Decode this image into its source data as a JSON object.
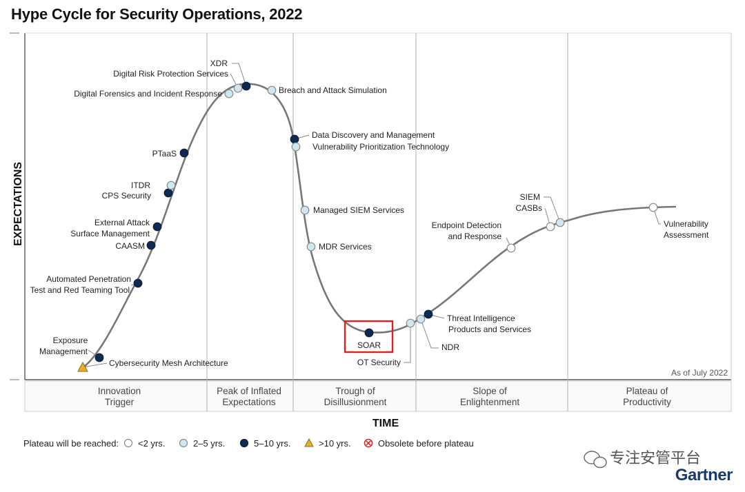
{
  "title": "Hype Cycle for Security Operations, 2022",
  "y_axis_label": "EXPECTATIONS",
  "x_axis_label": "TIME",
  "as_of": "As of July 2022",
  "phases": [
    {
      "lines": [
        "Innovation",
        "Trigger"
      ]
    },
    {
      "lines": [
        "Peak of Inflated",
        "Expectations"
      ]
    },
    {
      "lines": [
        "Trough of",
        "Disillusionment"
      ]
    },
    {
      "lines": [
        "Slope of",
        "Enlightenment"
      ]
    },
    {
      "lines": [
        "Plateau of",
        "Productivity"
      ]
    }
  ],
  "legend": {
    "prefix": "Plateau will be reached:",
    "items": [
      {
        "key": "lt2",
        "label": "<2 yrs."
      },
      {
        "key": "2to5",
        "label": "2–5 yrs."
      },
      {
        "key": "5to10",
        "label": "5–10 yrs."
      },
      {
        "key": "gt10",
        "label": ">10 yrs."
      },
      {
        "key": "obsolete",
        "label": "Obsolete before plateau"
      }
    ]
  },
  "colors": {
    "lt2": "#ffffff",
    "2to5": "#cfe6f3",
    "5to10": "#0f2a52",
    "gt10": "#e9b030",
    "obsolete": "#d42b2b",
    "curve": "#777777",
    "highlight": "#e01f1f"
  },
  "highlighted": "SOAR",
  "watermark": "专注安管平台",
  "brand": "Gartner",
  "chart_data": {
    "type": "scatter",
    "title": "Hype Cycle for Security Operations, 2022",
    "xlabel": "TIME",
    "ylabel": "EXPECTATIONS",
    "technologies": [
      {
        "name": "Cybersecurity Mesh Architecture",
        "phase": "Innovation Trigger",
        "plateau": "gt10"
      },
      {
        "name": "Exposure Management",
        "phase": "Innovation Trigger",
        "plateau": "5to10"
      },
      {
        "name": "Automated Penetration Test and Red Teaming Tool",
        "phase": "Innovation Trigger",
        "plateau": "5to10"
      },
      {
        "name": "CAASM",
        "phase": "Innovation Trigger",
        "plateau": "5to10"
      },
      {
        "name": "External Attack Surface Management",
        "phase": "Innovation Trigger",
        "plateau": "5to10"
      },
      {
        "name": "CPS Security",
        "phase": "Innovation Trigger",
        "plateau": "5to10"
      },
      {
        "name": "ITDR",
        "phase": "Innovation Trigger",
        "plateau": "2to5"
      },
      {
        "name": "PTaaS",
        "phase": "Innovation Trigger",
        "plateau": "5to10"
      },
      {
        "name": "Digital Forensics and Incident Response",
        "phase": "Peak of Inflated Expectations",
        "plateau": "2to5"
      },
      {
        "name": "Digital Risk Protection Services",
        "phase": "Peak of Inflated Expectations",
        "plateau": "2to5"
      },
      {
        "name": "XDR",
        "phase": "Peak of Inflated Expectations",
        "plateau": "5to10"
      },
      {
        "name": "Breach and Attack Simulation",
        "phase": "Peak of Inflated Expectations",
        "plateau": "2to5"
      },
      {
        "name": "Data Discovery and Management",
        "phase": "Trough of Disillusionment",
        "plateau": "5to10"
      },
      {
        "name": "Vulnerability Prioritization Technology",
        "phase": "Trough of Disillusionment",
        "plateau": "2to5"
      },
      {
        "name": "Managed SIEM Services",
        "phase": "Trough of Disillusionment",
        "plateau": "2to5"
      },
      {
        "name": "MDR Services",
        "phase": "Trough of Disillusionment",
        "plateau": "2to5"
      },
      {
        "name": "SOAR",
        "phase": "Trough of Disillusionment",
        "plateau": "5to10"
      },
      {
        "name": "OT Security",
        "phase": "Trough of Disillusionment",
        "plateau": "2to5"
      },
      {
        "name": "NDR",
        "phase": "Slope of Enlightenment",
        "plateau": "2to5"
      },
      {
        "name": "Threat Intelligence Products and Services",
        "phase": "Slope of Enlightenment",
        "plateau": "5to10"
      },
      {
        "name": "Endpoint Detection and Response",
        "phase": "Slope of Enlightenment",
        "plateau": "lt2"
      },
      {
        "name": "CASBs",
        "phase": "Slope of Enlightenment",
        "plateau": "lt2"
      },
      {
        "name": "SIEM",
        "phase": "Slope of Enlightenment",
        "plateau": "2to5"
      },
      {
        "name": "Vulnerability Assessment",
        "phase": "Plateau of Productivity",
        "plateau": "lt2"
      }
    ]
  }
}
